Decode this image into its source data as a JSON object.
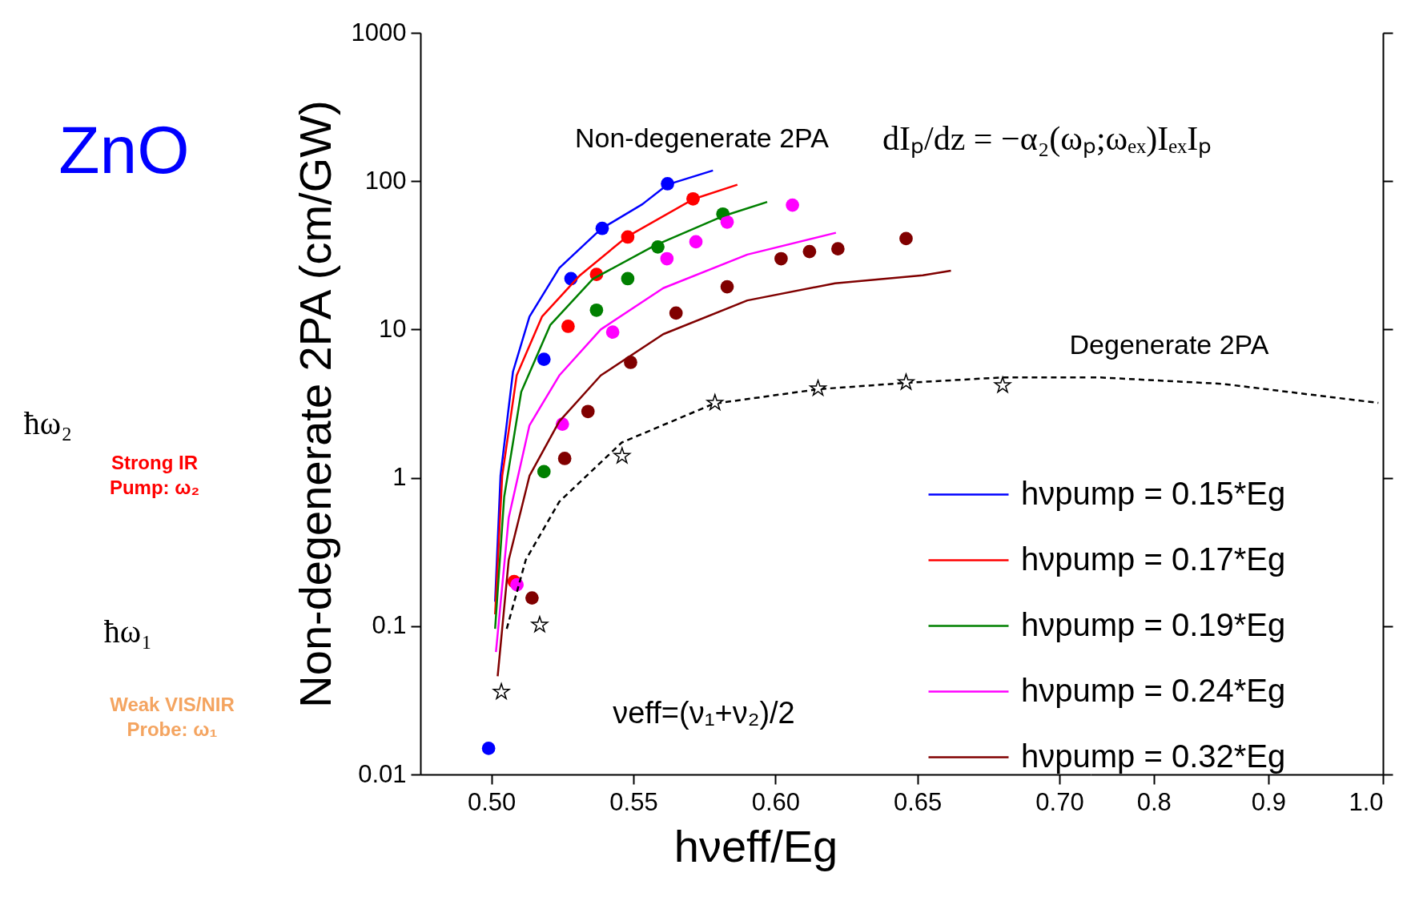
{
  "chart_data": [
    {
      "type": "other",
      "annotations": [
        "ZnO",
        "ħω₂",
        "Strong IR Pump: ω₂",
        "ħω₁",
        "Weak VIS/NIR Probe: ω₁"
      ]
    },
    {
      "type": "line",
      "xlabel": "hνeff/Eg",
      "ylabel": "Non-degenerate 2PA (cm/GW)",
      "log": "y",
      "grid": false,
      "legend": "bottom right",
      "xlim": [
        0.475,
        0.711
      ],
      "xticks": [
        {
          "value": 0.5,
          "label": "0.50"
        },
        {
          "value": 0.55,
          "label": "0.55"
        },
        {
          "value": 0.6,
          "label": "0.60"
        },
        {
          "value": 0.65,
          "label": "0.65"
        },
        {
          "value": 0.7,
          "label": "0.70"
        }
      ],
      "ylim": [
        0.01,
        1000
      ],
      "yticks": [
        0.01,
        0.1,
        1,
        10,
        100,
        1000
      ],
      "annotations": [
        "Non-degenerate 2PA",
        "dIₚ/dz = −α₂(ωₚ;ωₑₓ)IₑₓIₚ",
        "νeff=(ν₁+ν₂)/2"
      ],
      "series": [
        {
          "name": "hνpump = 0.15*Eg",
          "type": "line",
          "color": "#0000ff",
          "x": [
            0.5013,
            0.5032,
            0.5076,
            0.5134,
            0.5239,
            0.5385,
            0.5532,
            0.5621,
            0.578
          ],
          "values": [
            0.146,
            1.03,
            5.2,
            12.2,
            26,
            47.5,
            70,
            95,
            118
          ]
        },
        {
          "name": "hνpump = 0.17*Eg",
          "type": "line",
          "color": "#ff0000",
          "x": [
            0.5013,
            0.5038,
            0.5089,
            0.5178,
            0.5312,
            0.5475,
            0.571,
            0.5866
          ],
          "values": [
            0.12,
            1.03,
            4.9,
            12.2,
            23.2,
            41.9,
            75.5,
            94.6
          ]
        },
        {
          "name": "hνpump = 0.19*Eg",
          "type": "line",
          "color": "#008000",
          "x": [
            0.5013,
            0.5045,
            0.5105,
            0.5207,
            0.5357,
            0.5576,
            0.5812,
            0.5971
          ],
          "values": [
            0.096,
            0.745,
            3.8,
            10.7,
            21.9,
            36.9,
            57.8,
            72.4
          ]
        },
        {
          "name": "hνpump = 0.24*Eg",
          "type": "line",
          "color": "#ff00ff",
          "x": [
            0.5016,
            0.5061,
            0.5134,
            0.5239,
            0.5385,
            0.5605,
            0.5901,
            0.6213
          ],
          "values": [
            0.067,
            0.54,
            2.26,
            4.9,
            10,
            19,
            32,
            44.9
          ]
        },
        {
          "name": "hνpump = 0.32*Eg",
          "type": "line",
          "color": "#800000",
          "x": [
            0.5022,
            0.5061,
            0.5134,
            0.5239,
            0.5385,
            0.5605,
            0.5901,
            0.621,
            0.6519,
            0.6618
          ],
          "values": [
            0.046,
            0.28,
            1.03,
            2.4,
            4.9,
            9.3,
            15.7,
            20.5,
            23.2,
            24.9
          ]
        },
        {
          "type": "scatter",
          "marker": "circle",
          "color": "#0000ff",
          "x": [
            0.499,
            0.5185,
            0.528,
            0.539,
            0.562
          ],
          "values": [
            0.015,
            6.3,
            22,
            48,
            96
          ]
        },
        {
          "type": "scatter",
          "marker": "circle",
          "color": "#ff0000",
          "x": [
            0.508,
            0.527,
            0.537,
            0.548,
            0.571
          ],
          "values": [
            0.2,
            10.5,
            23.5,
            42,
            76
          ]
        },
        {
          "type": "scatter",
          "marker": "circle",
          "color": "#008000",
          "x": [
            0.5185,
            0.537,
            0.548,
            0.5586,
            0.5815
          ],
          "values": [
            1.1,
            13.5,
            22,
            36,
            60
          ]
        },
        {
          "type": "scatter",
          "marker": "circle",
          "color": "#ff00ff",
          "x": [
            0.509,
            0.525,
            0.5427,
            0.5618,
            0.572,
            0.583,
            0.606
          ],
          "values": [
            0.19,
            2.3,
            9.6,
            30,
            39,
            53,
            69
          ]
        },
        {
          "type": "scatter",
          "marker": "circle",
          "color": "#800000",
          "x": [
            0.5143,
            0.5258,
            0.534,
            0.549,
            0.565,
            0.583,
            0.602,
            0.612,
            0.622,
            0.646
          ],
          "values": [
            0.155,
            1.35,
            2.8,
            6.0,
            12.9,
            19.4,
            30,
            33.5,
            35,
            41
          ]
        },
        {
          "type": "scatter",
          "marker": "star",
          "color": "#000000",
          "x": [
            0.5035,
            0.517,
            0.546,
            0.5787,
            0.615,
            0.646,
            0.68
          ],
          "values": [
            0.036,
            0.102,
            1.4,
            3.2,
            4.0,
            4.4,
            4.2
          ]
        },
        {
          "type": "line",
          "line_style": "dashed",
          "color": "#000000",
          "x": [
            0.5054,
            0.5121,
            0.5239,
            0.5459,
            0.5783,
            0.6153,
            0.6462,
            0.6799,
            0.7099
          ],
          "values": [
            0.096,
            0.28,
            0.69,
            1.73,
            3.16,
            3.96,
            4.37,
            4.75,
            4.75
          ]
        }
      ]
    },
    {
      "type": "line",
      "tick_labels": "x",
      "log": "y",
      "grid": false,
      "xlim": [
        0.745,
        1.0
      ],
      "xticks": [
        0.8,
        0.9,
        {
          "value": 1.0,
          "label": "1.0"
        }
      ],
      "ylim": [
        0.01,
        1000
      ],
      "yticks": [
        0.01,
        0.1,
        1,
        10,
        100,
        1000
      ],
      "annotations": [
        "Degenerate 2PA"
      ],
      "series": [
        {
          "type": "line",
          "line_style": "dashed",
          "color": "#000000",
          "x": [
            0.745,
            0.7536,
            0.86,
            0.996
          ],
          "values": [
            4.75,
            4.75,
            4.3,
            3.2
          ]
        }
      ]
    }
  ]
}
